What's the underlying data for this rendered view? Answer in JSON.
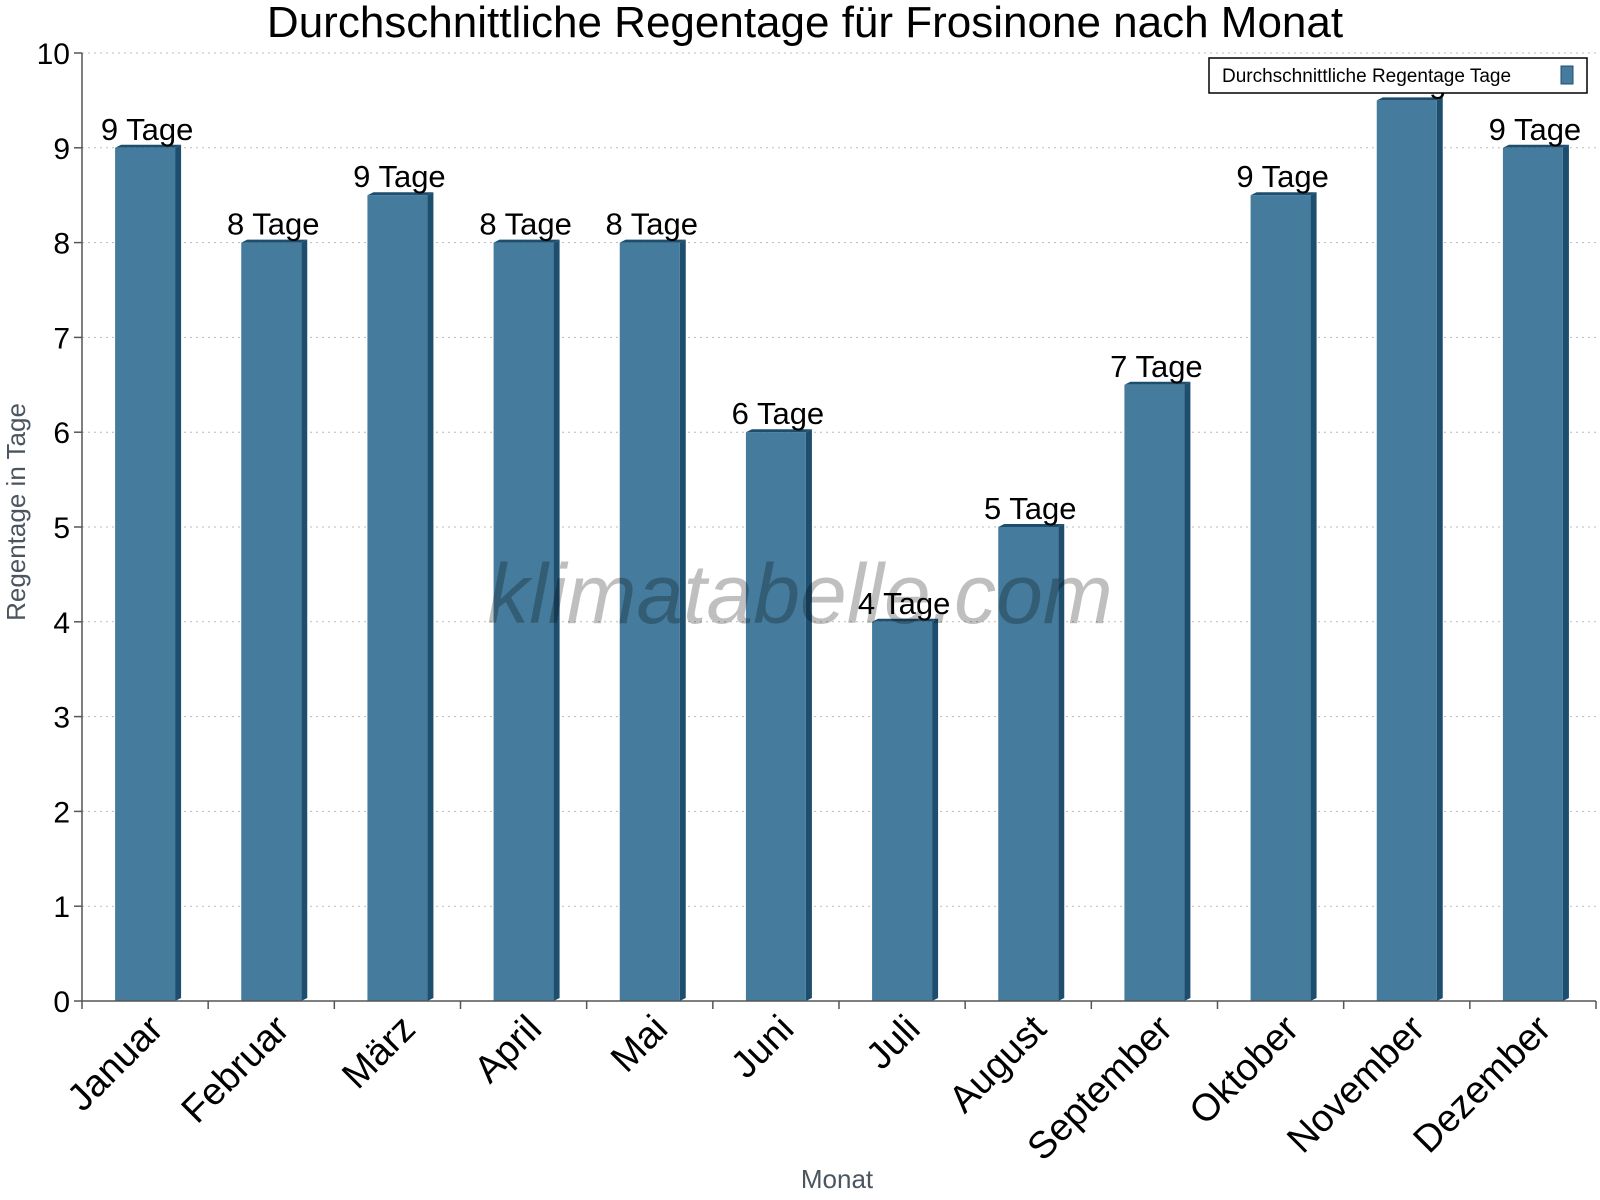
{
  "chart_data": {
    "type": "bar",
    "title": "Durchschnittliche Regentage für Frosinone nach Monat",
    "xlabel": "Monat",
    "ylabel": "Regentage in Tage",
    "ylim": [
      0,
      10
    ],
    "yticks": [
      "0",
      "1",
      "2",
      "3",
      "4",
      "5",
      "6",
      "7",
      "8",
      "9",
      "10"
    ],
    "grid": true,
    "legend_position": "top-right",
    "categories": [
      "Januar",
      "Februar",
      "März",
      "April",
      "Mai",
      "Juni",
      "Juli",
      "August",
      "September",
      "Oktober",
      "November",
      "Dezember"
    ],
    "series": [
      {
        "name": "Durchschnittliche Regentage Tage",
        "values": [
          9,
          8,
          8.5,
          8,
          8,
          6,
          4,
          5,
          6.5,
          8.5,
          9.5,
          9
        ],
        "labels": [
          "9 Tage",
          "8 Tage",
          "9 Tage",
          "8 Tage",
          "8 Tage",
          "6 Tage",
          "4 Tage",
          "5 Tage",
          "7 Tage",
          "9 Tage",
          "10 Tage",
          "9 Tage"
        ]
      }
    ],
    "colors": {
      "bar": "#457b9d",
      "bar_side": "#1d4e6e",
      "grid": "#bbbbbb",
      "axis": "#555555"
    }
  },
  "watermark": "klimatabelle.com"
}
